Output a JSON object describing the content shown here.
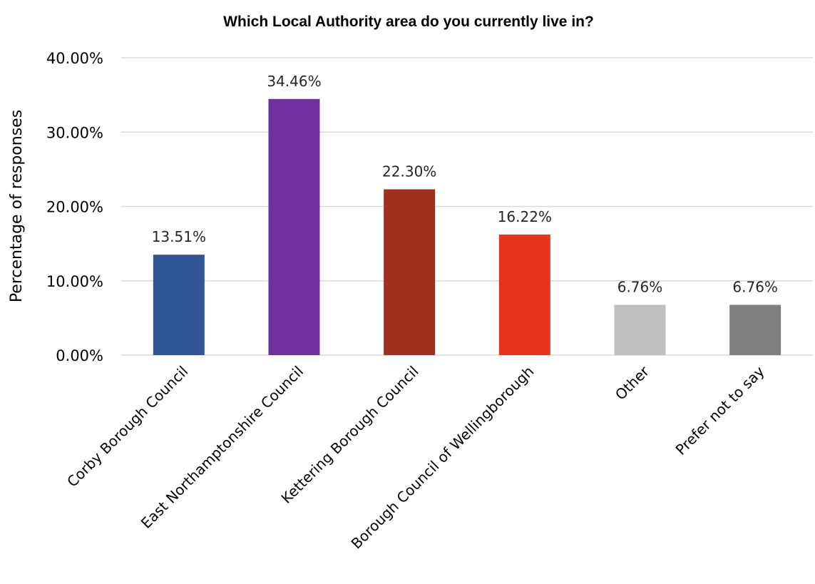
{
  "chart_data": {
    "type": "bar",
    "title": "Which Local Authority area do you currently live in?",
    "xlabel": "",
    "ylabel": "Percentage of responses",
    "categories": [
      "Corby Borough Council",
      "East Northamptonshire Council",
      "Kettering Borough Council",
      "Borough Council of Wellingborough",
      "Other",
      "Prefer not to say"
    ],
    "values": [
      13.51,
      34.46,
      22.3,
      16.22,
      6.76,
      6.76
    ],
    "data_labels": [
      "13.51%",
      "34.46%",
      "22.30%",
      "16.22%",
      "6.76%",
      "6.76%"
    ],
    "colors": [
      "#2f5597",
      "#7030a0",
      "#a0301b",
      "#e8321a",
      "#bfbfbf",
      "#7f7f7f"
    ],
    "ylim": [
      0,
      40
    ],
    "yticks": [
      0,
      10,
      20,
      30,
      40
    ],
    "ytick_labels": [
      "0.00%",
      "10.00%",
      "20.00%",
      "30.00%",
      "40.00%"
    ],
    "grid": true,
    "legend": "none"
  }
}
